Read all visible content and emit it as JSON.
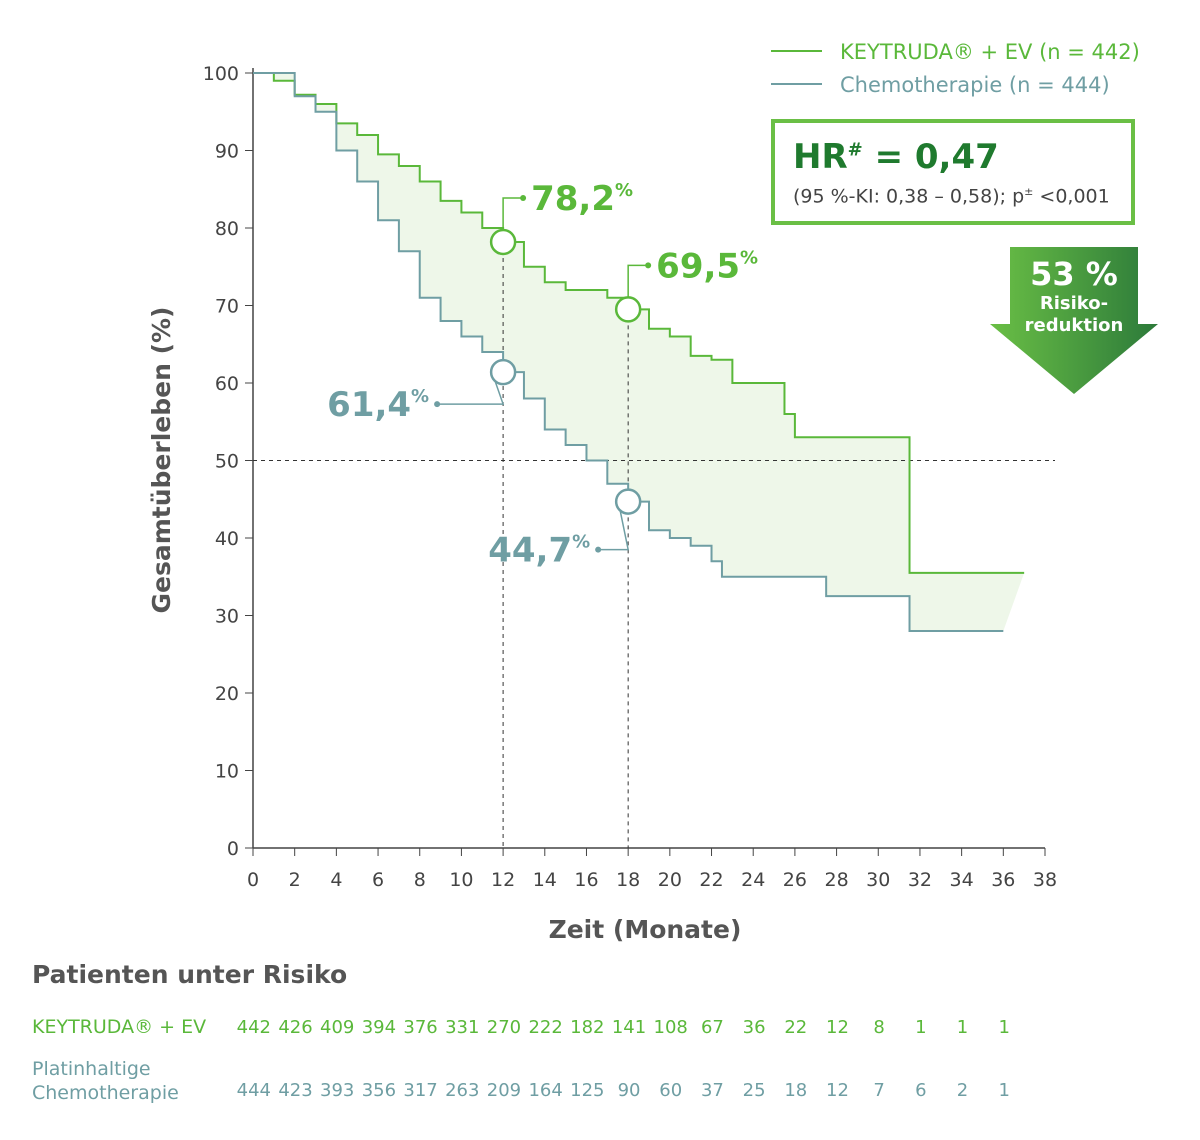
{
  "chart_data": {
    "type": "line",
    "subtype": "kaplan-meier",
    "xlabel": "Zeit (Monate)",
    "ylabel": "Gesamtüberleben (%)",
    "xlim": [
      0,
      38
    ],
    "ylim": [
      0,
      100
    ],
    "xticks": [
      0,
      2,
      4,
      6,
      8,
      10,
      12,
      14,
      16,
      18,
      20,
      22,
      24,
      26,
      28,
      30,
      32,
      34,
      36,
      38
    ],
    "yticks": [
      0,
      10,
      20,
      30,
      40,
      50,
      60,
      70,
      80,
      90,
      100
    ],
    "colors": {
      "keytruda": "#5ab83a",
      "chemo": "#6f9ea3",
      "fill": "#eef7e9",
      "dark_green": "#1f7a2e"
    },
    "series": [
      {
        "name": "KEYTRUDA® + EV (n = 442)",
        "points": [
          [
            0,
            100
          ],
          [
            1,
            99
          ],
          [
            2,
            97.2
          ],
          [
            3,
            96
          ],
          [
            4,
            93.5
          ],
          [
            5,
            92
          ],
          [
            6,
            89.5
          ],
          [
            7,
            88
          ],
          [
            8,
            86
          ],
          [
            9,
            83.5
          ],
          [
            10,
            82
          ],
          [
            11,
            80
          ],
          [
            12,
            78.2
          ],
          [
            13,
            75
          ],
          [
            14,
            73
          ],
          [
            15,
            72
          ],
          [
            16,
            72
          ],
          [
            17,
            71
          ],
          [
            18,
            69.5
          ],
          [
            19,
            67
          ],
          [
            20,
            66
          ],
          [
            21,
            63.5
          ],
          [
            22,
            63
          ],
          [
            23,
            60
          ],
          [
            25,
            60
          ],
          [
            25.5,
            56
          ],
          [
            26,
            53
          ],
          [
            31.5,
            53
          ],
          [
            31.5,
            35.5
          ],
          [
            37,
            35.5
          ]
        ]
      },
      {
        "name": "Chemotherapie (n = 444)",
        "points": [
          [
            0,
            100
          ],
          [
            2,
            97
          ],
          [
            3,
            95
          ],
          [
            4,
            90
          ],
          [
            5,
            86
          ],
          [
            6,
            81
          ],
          [
            7,
            77
          ],
          [
            8,
            71
          ],
          [
            9,
            68
          ],
          [
            10,
            66
          ],
          [
            11,
            64
          ],
          [
            12,
            61.4
          ],
          [
            13,
            58
          ],
          [
            14,
            54
          ],
          [
            15,
            52
          ],
          [
            16,
            50
          ],
          [
            17,
            47
          ],
          [
            18,
            44.7
          ],
          [
            19,
            41
          ],
          [
            20,
            40
          ],
          [
            21,
            39
          ],
          [
            22,
            37
          ],
          [
            22.5,
            35
          ],
          [
            27,
            35
          ],
          [
            27.5,
            32.5
          ],
          [
            31.5,
            32.5
          ],
          [
            31.5,
            28
          ],
          [
            36,
            28
          ]
        ]
      }
    ],
    "annotations": [
      {
        "x": 12,
        "y": 78.2,
        "label": "78,2",
        "series": 0
      },
      {
        "x": 18,
        "y": 69.5,
        "label": "69,5",
        "series": 0
      },
      {
        "x": 12,
        "y": 61.4,
        "label": "61,4",
        "series": 1
      },
      {
        "x": 18,
        "y": 44.7,
        "label": "44,7",
        "series": 1
      }
    ],
    "reference_line_y": 50,
    "legend_position": "top-right"
  },
  "hr": {
    "title": "HR",
    "sup": "#",
    "value": " = 0,47",
    "detail": "(95 %-KI: 0,38 – 0,58); p",
    "detail_sup": "±",
    "detail_end": " <0,001"
  },
  "arrow": {
    "pct": "53 %",
    "line1": "Risiko-",
    "line2": "reduktion"
  },
  "risk": {
    "title": "Patienten unter Risiko",
    "rows": [
      {
        "label": "KEYTRUDA® + EV",
        "values": [
          "442",
          "426",
          "409",
          "394",
          "376",
          "331",
          "270",
          "222",
          "182",
          "141",
          "108",
          "67",
          "36",
          "22",
          "12",
          "8",
          "1",
          "1",
          "1"
        ]
      },
      {
        "label": "Platinhaltige Chemotherapie",
        "values": [
          "444",
          "423",
          "393",
          "356",
          "317",
          "263",
          "209",
          "164",
          "125",
          "90",
          "60",
          "37",
          "25",
          "18",
          "12",
          "7",
          "6",
          "2",
          "1"
        ]
      }
    ]
  }
}
